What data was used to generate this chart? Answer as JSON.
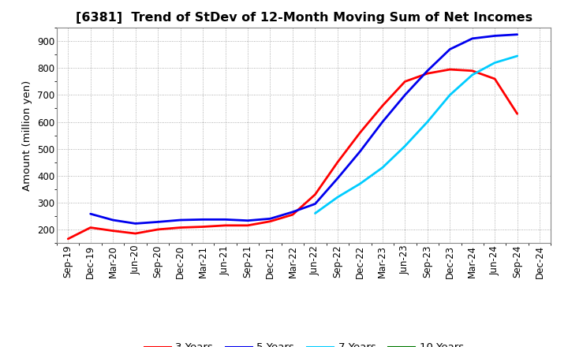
{
  "title": "[6381]  Trend of StDev of 12-Month Moving Sum of Net Incomes",
  "ylabel": "Amount (million yen)",
  "background_color": "#ffffff",
  "plot_bg_color": "#ffffff",
  "grid_color": "#aaaaaa",
  "title_fontsize": 11.5,
  "axis_label_fontsize": 9.5,
  "tick_fontsize": 8.5,
  "legend_fontsize": 9.5,
  "series": {
    "3 Years": {
      "color": "#ff0000",
      "values": [
        165,
        207,
        195,
        185,
        200,
        207,
        210,
        215,
        215,
        230,
        255,
        330,
        450,
        560,
        660,
        750,
        780,
        795,
        790,
        760,
        630,
        null
      ]
    },
    "5 Years": {
      "color": "#0000ee",
      "values": [
        null,
        258,
        235,
        222,
        228,
        235,
        237,
        237,
        233,
        240,
        265,
        295,
        390,
        490,
        600,
        700,
        790,
        870,
        910,
        920,
        925,
        null
      ]
    },
    "7 Years": {
      "color": "#00ccff",
      "values": [
        null,
        null,
        null,
        null,
        null,
        null,
        null,
        null,
        null,
        null,
        null,
        260,
        320,
        370,
        430,
        510,
        600,
        700,
        775,
        820,
        845,
        null
      ]
    },
    "10 Years": {
      "color": "#007700",
      "values": [
        null,
        null,
        null,
        null,
        null,
        null,
        null,
        null,
        null,
        null,
        null,
        null,
        null,
        null,
        null,
        null,
        null,
        null,
        null,
        null,
        null,
        null
      ]
    }
  },
  "xtick_labels": [
    "Sep-19",
    "Dec-19",
    "Mar-20",
    "Jun-20",
    "Sep-20",
    "Dec-20",
    "Mar-21",
    "Jun-21",
    "Sep-21",
    "Dec-21",
    "Mar-22",
    "Jun-22",
    "Sep-22",
    "Dec-22",
    "Mar-23",
    "Jun-23",
    "Sep-23",
    "Dec-23",
    "Mar-24",
    "Jun-24",
    "Sep-24",
    "Dec-24"
  ],
  "ylim": [
    150,
    950
  ],
  "yticks": [
    200,
    300,
    400,
    500,
    600,
    700,
    800,
    900
  ],
  "line_width": 2.0
}
